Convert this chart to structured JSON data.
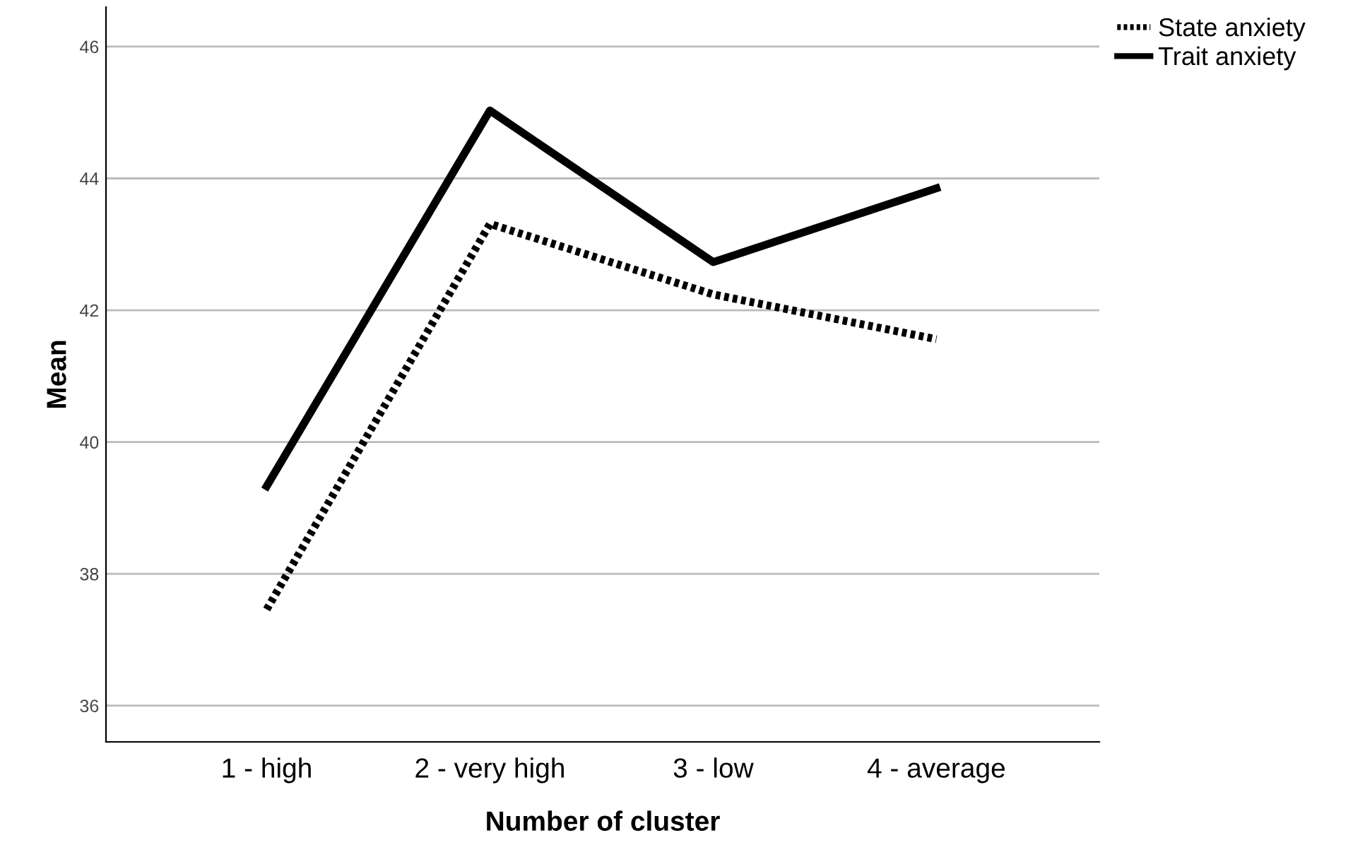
{
  "chart_data": {
    "type": "line",
    "xlabel": "Number of cluster",
    "ylabel": "Mean",
    "categories": [
      "1 - high",
      "2 - very high",
      "3 - low",
      "4 - average"
    ],
    "series": [
      {
        "name": "State anxiety",
        "color": "#000000",
        "line_style": "dotted",
        "values": [
          37.46,
          43.31,
          42.24,
          41.56
        ]
      },
      {
        "name": "Trait anxiety",
        "color": "#000000",
        "line_style": "solid",
        "values": [
          39.33,
          45.03,
          42.73,
          43.85
        ]
      }
    ],
    "ylim": [
      35.45,
      46.6
    ],
    "yticks": [
      36,
      38,
      40,
      42,
      44,
      46
    ],
    "grid": "y",
    "legend": "top right",
    "marker": "none"
  }
}
